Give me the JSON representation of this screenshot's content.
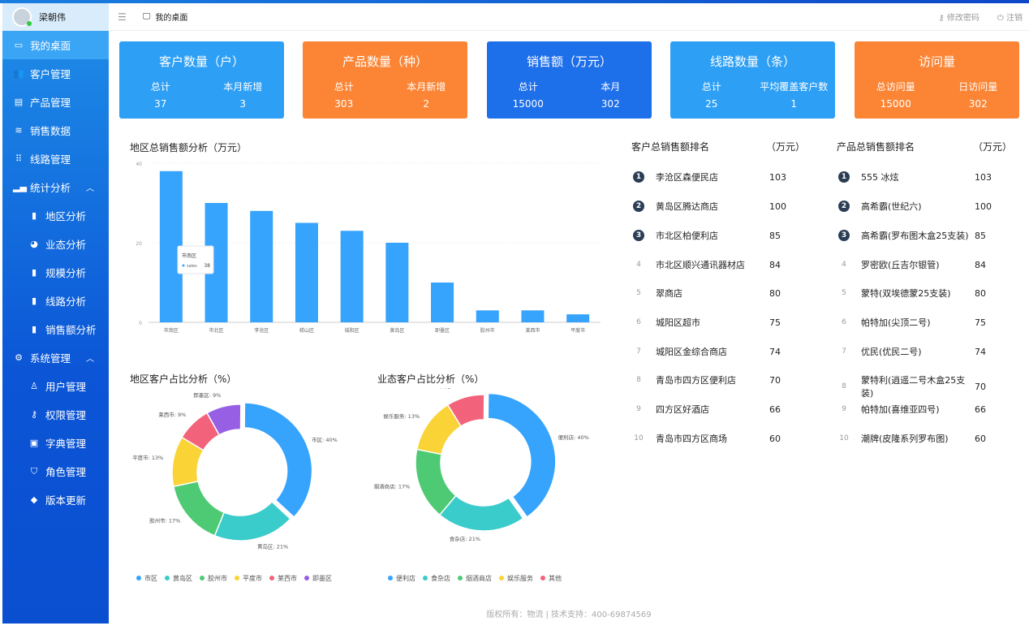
{
  "user": {
    "name": "梁朝伟"
  },
  "header": {
    "breadcrumb": "我的桌面",
    "change_password": "修改密码",
    "logout": "注销"
  },
  "sidebar": {
    "items": [
      {
        "label": "我的桌面",
        "icon": "monitor-icon",
        "active": true
      },
      {
        "label": "客户管理",
        "icon": "users-icon"
      },
      {
        "label": "产品管理",
        "icon": "clipboard-icon"
      },
      {
        "label": "销售数据",
        "icon": "database-icon"
      },
      {
        "label": "线路管理",
        "icon": "grid-icon"
      },
      {
        "label": "统计分析",
        "icon": "signal-icon",
        "expanded": true
      },
      {
        "label": "地区分析",
        "icon": "bar-chart-icon",
        "sub": true
      },
      {
        "label": "业态分析",
        "icon": "pie-chart-icon",
        "sub": true
      },
      {
        "label": "规模分析",
        "icon": "bar-chart-icon",
        "sub": true
      },
      {
        "label": "线路分析",
        "icon": "bar-chart-icon",
        "sub": true
      },
      {
        "label": "销售额分析",
        "icon": "bar-chart-icon",
        "sub": true
      },
      {
        "label": "系统管理",
        "icon": "gear-icon",
        "expanded": true
      },
      {
        "label": "用户管理",
        "icon": "user-icon",
        "sub": true
      },
      {
        "label": "权限管理",
        "icon": "key-icon",
        "sub": true
      },
      {
        "label": "字典管理",
        "icon": "book-icon",
        "sub": true
      },
      {
        "label": "角色管理",
        "icon": "shirt-icon",
        "sub": true
      },
      {
        "label": "版本更新",
        "icon": "update-icon",
        "sub": true
      }
    ]
  },
  "cards": [
    {
      "title": "客户数量（户）",
      "l1": "总计",
      "l2": "本月新增",
      "v1": "37",
      "v2": "3",
      "color": "#2d9ff5"
    },
    {
      "title": "产品数量（种）",
      "l1": "总计",
      "l2": "本月新增",
      "v1": "303",
      "v2": "2",
      "color": "#fb8535"
    },
    {
      "title": "销售额（万元）",
      "l1": "总计",
      "l2": "本月",
      "v1": "15000",
      "v2": "302",
      "color": "#1e6fea"
    },
    {
      "title": "线路数量（条）",
      "l1": "总计",
      "l2": "平均覆盖客户数",
      "v1": "25",
      "v2": "1",
      "color": "#2d9ff5"
    },
    {
      "title": "访问量",
      "l1": "总访问量",
      "l2": "日访问量",
      "v1": "15000",
      "v2": "302",
      "color": "#fb8535"
    }
  ],
  "chart_data": [
    {
      "type": "bar",
      "title": "地区总销售额分析（万元）",
      "categories": [
        "市南区",
        "市北区",
        "李沧区",
        "崂山区",
        "城阳区",
        "黄岛区",
        "即墨区",
        "胶州市",
        "莱西市",
        "平度市"
      ],
      "values": [
        38,
        30,
        28,
        25,
        23,
        20,
        10,
        3,
        3,
        2
      ],
      "ylim": [
        0,
        40
      ],
      "yticks": [
        "0",
        "20",
        "40"
      ],
      "tooltip": {
        "title": "市南区",
        "series": "sales",
        "value": "38"
      },
      "color": "#36a3fc"
    },
    {
      "type": "pie",
      "title": "地区客户占比分析（%）",
      "labels": [
        "市区",
        "黄岛区",
        "胶州市",
        "平度市",
        "莱西市",
        "即墨区"
      ],
      "values": [
        40,
        21,
        17,
        13,
        9,
        9
      ],
      "colors": [
        "#36a3fc",
        "#3acbcb",
        "#4fca74",
        "#fad337",
        "#f2637b",
        "#975fe4"
      ]
    },
    {
      "type": "pie",
      "title": "业态客户占比分析（%）",
      "labels": [
        "便利店",
        "食杂店",
        "烟酒商店",
        "娱乐服务",
        "其他"
      ],
      "values": [
        40,
        21,
        17,
        13,
        9
      ],
      "colors": [
        "#36a3fc",
        "#3acbcb",
        "#4fca74",
        "#fad337",
        "#f2637b"
      ]
    }
  ],
  "customer_rank": {
    "title": "客户总销售额排名",
    "unit": "（万元）",
    "rows": [
      {
        "n": "1",
        "name": "李沧区森便民店",
        "v": "103"
      },
      {
        "n": "2",
        "name": "黄岛区腾达商店",
        "v": "100"
      },
      {
        "n": "3",
        "name": "市北区柏便利店",
        "v": "85"
      },
      {
        "n": "4",
        "name": "市北区顺兴通讯器材店",
        "v": "84"
      },
      {
        "n": "5",
        "name": "翠商店",
        "v": "80"
      },
      {
        "n": "6",
        "name": "城阳区超市",
        "v": "75"
      },
      {
        "n": "7",
        "name": "城阳区金综合商店",
        "v": "74"
      },
      {
        "n": "8",
        "name": "青岛市四方区便利店",
        "v": "70"
      },
      {
        "n": "9",
        "name": "四方区好酒店",
        "v": "66"
      },
      {
        "n": "10",
        "name": "青岛市四方区商场",
        "v": "60"
      }
    ]
  },
  "product_rank": {
    "title": "产品总销售额排名",
    "unit": "（万元）",
    "rows": [
      {
        "n": "1",
        "name": "555 冰炫",
        "v": "103"
      },
      {
        "n": "2",
        "name": "高希霸(世纪六)",
        "v": "100"
      },
      {
        "n": "3",
        "name": "高希霸(罗布图木盒25支装)",
        "v": "85"
      },
      {
        "n": "4",
        "name": "罗密欧(丘吉尔银管)",
        "v": "84"
      },
      {
        "n": "5",
        "name": "蒙特(双埃德蒙25支装)",
        "v": "80"
      },
      {
        "n": "6",
        "name": "帕特加(尖顶二号)",
        "v": "75"
      },
      {
        "n": "7",
        "name": "优民(优民二号)",
        "v": "74"
      },
      {
        "n": "8",
        "name": "蒙特利(逍遥二号木盒25支装)",
        "v": "70"
      },
      {
        "n": "9",
        "name": "帕特加(喜维亚四号)",
        "v": "66"
      },
      {
        "n": "10",
        "name": "潮牌(皮隆系列罗布图)",
        "v": "60"
      }
    ]
  },
  "footer": "版权所有：物流 | 技术支持：400-69874569"
}
